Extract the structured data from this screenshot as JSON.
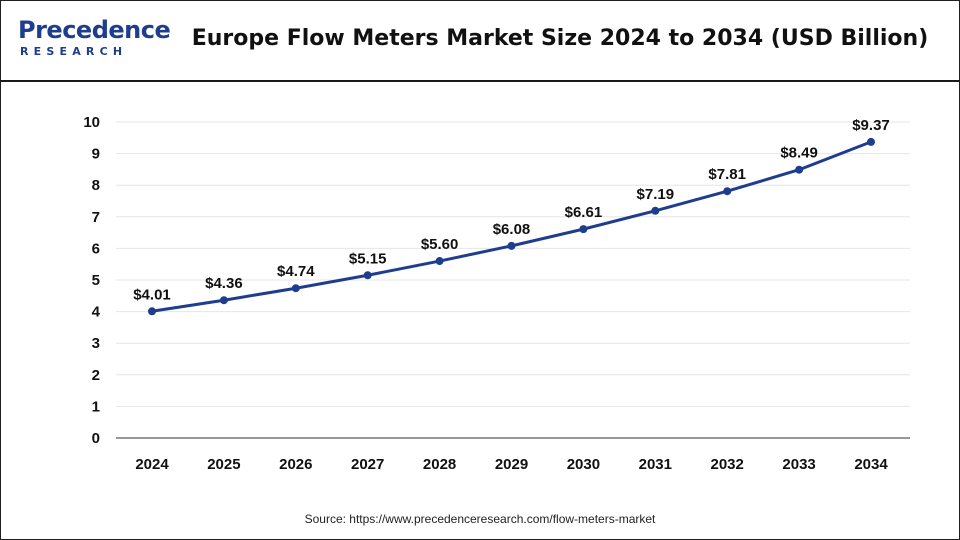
{
  "header": {
    "logo_word": "Precedence",
    "logo_sub": "RESEARCH",
    "title": "Europe Flow Meters Market Size 2024 to 2034 (USD Billion)"
  },
  "footer": {
    "source": "Source: https://www.precedenceresearch.com/flow-meters-market"
  },
  "colors": {
    "line": "#1f3d8f",
    "brand": "#1e3d8f",
    "grid": "#e6e6e6"
  },
  "chart_data": {
    "type": "line",
    "title": "Europe Flow Meters Market Size 2024 to 2034 (USD Billion)",
    "categories": [
      "2024",
      "2025",
      "2026",
      "2027",
      "2028",
      "2029",
      "2030",
      "2031",
      "2032",
      "2033",
      "2034"
    ],
    "series": [
      {
        "values": [
          4.01,
          4.36,
          4.74,
          5.15,
          5.6,
          6.08,
          6.61,
          7.19,
          7.81,
          8.49,
          9.37
        ],
        "data_labels": [
          "$4.01",
          "$4.36",
          "$4.74",
          "$5.15",
          "$5.60",
          "$6.08",
          "$6.61",
          "$7.19",
          "$7.81",
          "$8.49",
          "$9.37"
        ]
      }
    ],
    "yticks": [
      "0",
      "1",
      "2",
      "3",
      "4",
      "5",
      "6",
      "7",
      "8",
      "9",
      "10"
    ],
    "ylim": [
      0,
      10
    ],
    "xlabel": "",
    "ylabel": "",
    "grid": true,
    "legend": "none"
  }
}
